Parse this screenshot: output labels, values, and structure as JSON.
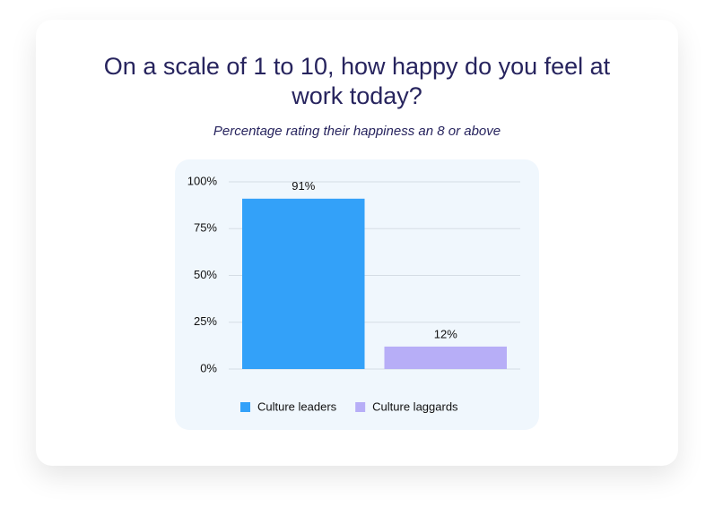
{
  "chart_data": {
    "type": "bar",
    "title": "On a scale of 1 to 10, how happy do you feel at work today?",
    "subtitle": "Percentage rating their happiness an 8 or above",
    "categories": [
      null
    ],
    "series": [
      {
        "name": "Culture leaders",
        "color": "#33a1f9",
        "values": [
          91
        ],
        "value_labels": [
          "91%"
        ]
      },
      {
        "name": "Culture laggards",
        "color": "#b7aef7",
        "values": [
          12
        ],
        "value_labels": [
          "12%"
        ]
      }
    ],
    "ylim": [
      0,
      100
    ],
    "yticks": [
      {
        "value": 0,
        "label": "0%"
      },
      {
        "value": 25,
        "label": "25%"
      },
      {
        "value": 50,
        "label": "50%"
      },
      {
        "value": 75,
        "label": "75%"
      },
      {
        "value": 100,
        "label": "100%"
      }
    ],
    "grid": true,
    "legend": "bottom"
  }
}
